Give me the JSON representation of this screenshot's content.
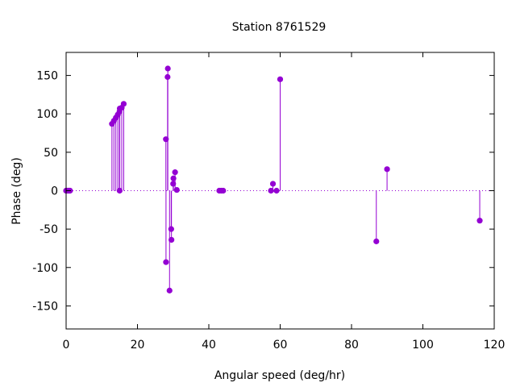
{
  "chart_data": {
    "type": "scatter",
    "style": "impulses-with-points",
    "title": "Station 8761529",
    "xlabel": "Angular speed (deg/hr)",
    "ylabel": "Phase (deg)",
    "xlim": [
      0,
      120
    ],
    "ylim": [
      -180,
      180
    ],
    "xticks": [
      0,
      20,
      40,
      60,
      80,
      100,
      120
    ],
    "yticks": [
      -150,
      -100,
      -50,
      0,
      50,
      100,
      150
    ],
    "xtick_labels": [
      "0",
      "20",
      "40",
      "60",
      "80",
      "100",
      "120"
    ],
    "ytick_labels": [
      "-150",
      "-100",
      "-50",
      "0",
      "50",
      "100",
      "150"
    ],
    "grid": false,
    "zero_line": "dotted",
    "color": "#9400d3",
    "series": [
      {
        "x": [
          0.0,
          0.04,
          0.08,
          0.5,
          0.54,
          1.0,
          1.1,
          12.85,
          13.4,
          13.94,
          14.49,
          14.96,
          15.0,
          15.04,
          15.59,
          16.14,
          27.97,
          28.0,
          28.44,
          28.51,
          28.99,
          29.46,
          29.53,
          30.0,
          30.08,
          30.54,
          31.02,
          42.93,
          43.48,
          44.03,
          57.42,
          57.97,
          58.98,
          60.0,
          86.95,
          89.96,
          115.94
        ],
        "y": [
          0,
          0,
          0,
          0,
          0,
          0,
          0,
          87,
          91,
          95,
          99,
          103,
          0,
          107,
          108,
          113,
          67,
          -93,
          148,
          159,
          -130,
          -50,
          -64,
          9,
          16,
          24,
          1,
          0,
          0,
          0,
          0,
          9,
          0,
          145,
          -66,
          28,
          -39
        ]
      }
    ]
  }
}
